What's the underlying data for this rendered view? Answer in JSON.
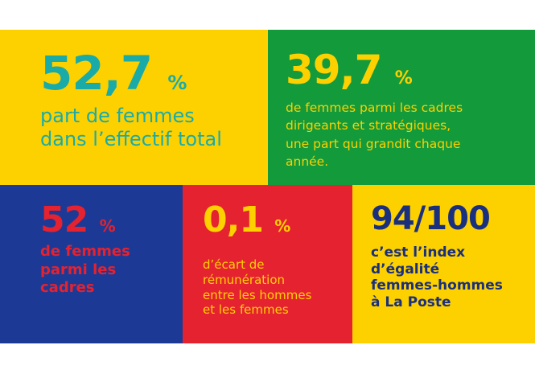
{
  "colors": {
    "yellow": "#fdd100",
    "green": "#139a3a",
    "blue": "#1c3a95",
    "red": "#e42230",
    "teal": "#1aaba8",
    "dark_navy": "#1a2f7e"
  },
  "stats": [
    {
      "value": "52,7",
      "unit": "%",
      "lines": [
        "part de femmes",
        "dans l’effectif total"
      ]
    },
    {
      "value": "39,7",
      "unit": "%",
      "lines": [
        "de femmes parmi les cadres",
        "dirigeants et stratégiques,",
        "une part qui grandit chaque",
        "année."
      ]
    },
    {
      "value": "52",
      "unit": "%",
      "lines": [
        "de femmes",
        "parmi les",
        "cadres"
      ]
    },
    {
      "value": "0,1",
      "unit": "%",
      "lines": [
        "d’écart de",
        "rémunération",
        "entre les hommes",
        "et les femmes"
      ]
    },
    {
      "value": "94/100",
      "unit": "",
      "lines": [
        "c’est l’index",
        "d’égalité",
        "femmes-hommes",
        "à La Poste"
      ]
    }
  ]
}
